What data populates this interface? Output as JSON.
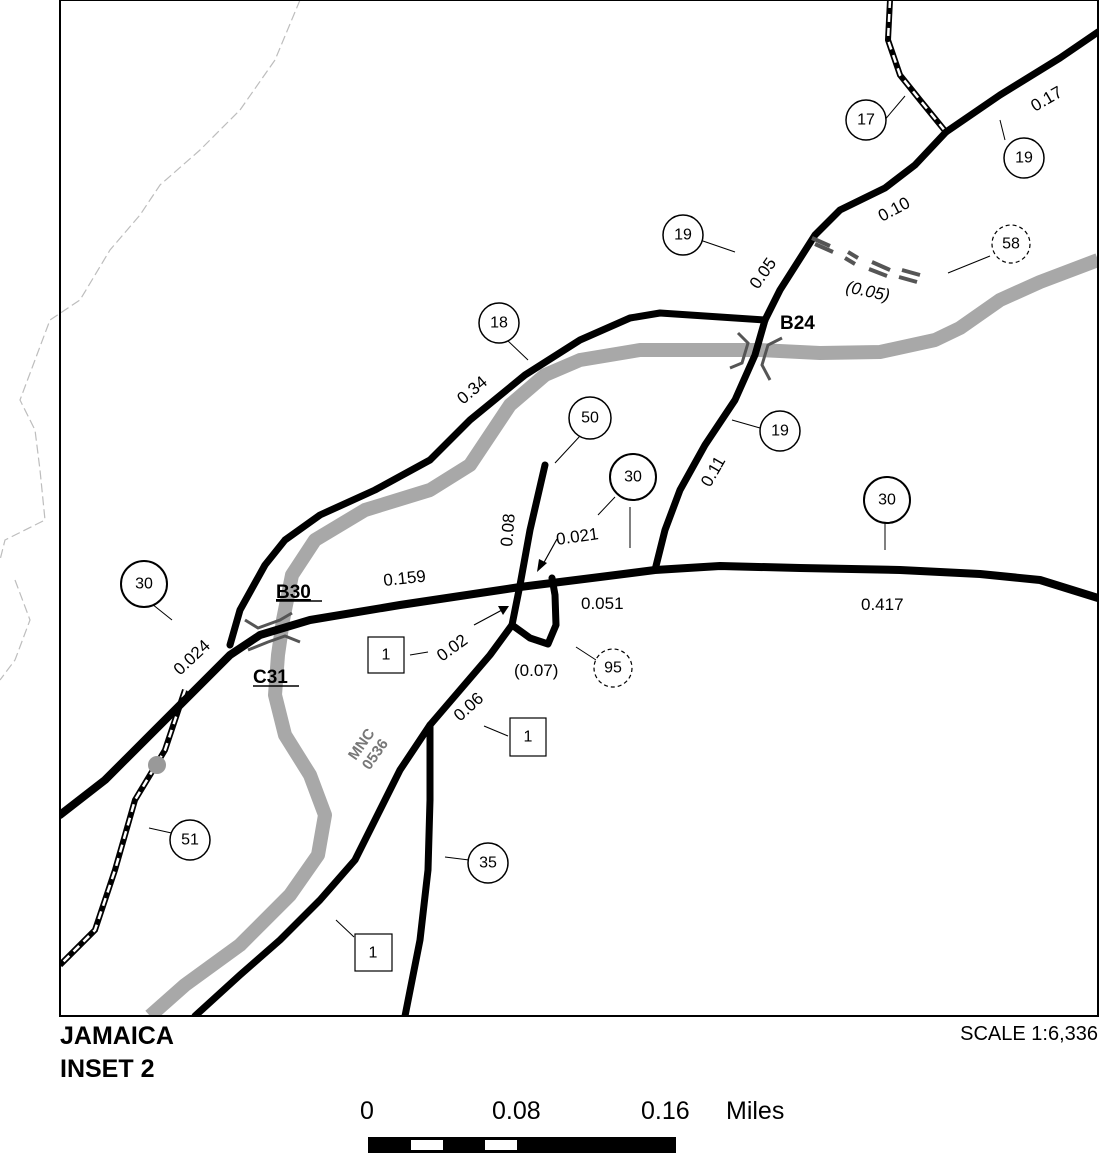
{
  "map": {
    "segment_lengths": {
      "l_0_17": "0.17",
      "l_0_10": "0.10",
      "l_0_05": "0.05",
      "l_0_05p": "(0.05)",
      "l_0_34": "0.34",
      "l_0_11": "0.11",
      "l_0_08": "0.08",
      "l_0_021": "0.021",
      "l_0_159": "0.159",
      "l_0_024": "0.024",
      "l_0_051": "0.051",
      "l_0_417": "0.417",
      "l_0_02": "0.02",
      "l_0_07p": "(0.07)",
      "l_0_06": "0.06"
    },
    "route_markers": {
      "c17": "17",
      "c19a": "19",
      "c19b": "19",
      "c58": "58",
      "c18": "18",
      "c19c": "19",
      "c50": "50",
      "c30a": "30",
      "c30b": "30",
      "c30c": "30",
      "c95": "95",
      "c51": "51",
      "c35": "35"
    },
    "box_markers": {
      "b1a": "1",
      "b1b": "1",
      "b1c": "1"
    },
    "bridges": {
      "b24": "B24",
      "b30": "B30",
      "c31": "C31"
    },
    "stream_label_line1": "MNC",
    "stream_label_line2": "0536"
  },
  "footer": {
    "title_line1": "JAMAICA",
    "title_line2": "INSET 2",
    "scale_text": "SCALE 1:6,336",
    "scale_bar_labels": [
      "0",
      "0.08",
      "0.16",
      "Miles"
    ]
  },
  "colors": {
    "road": "#000000",
    "river": "#a8a8a8",
    "boundary": "#bdbdbd",
    "frame": "#000000"
  }
}
